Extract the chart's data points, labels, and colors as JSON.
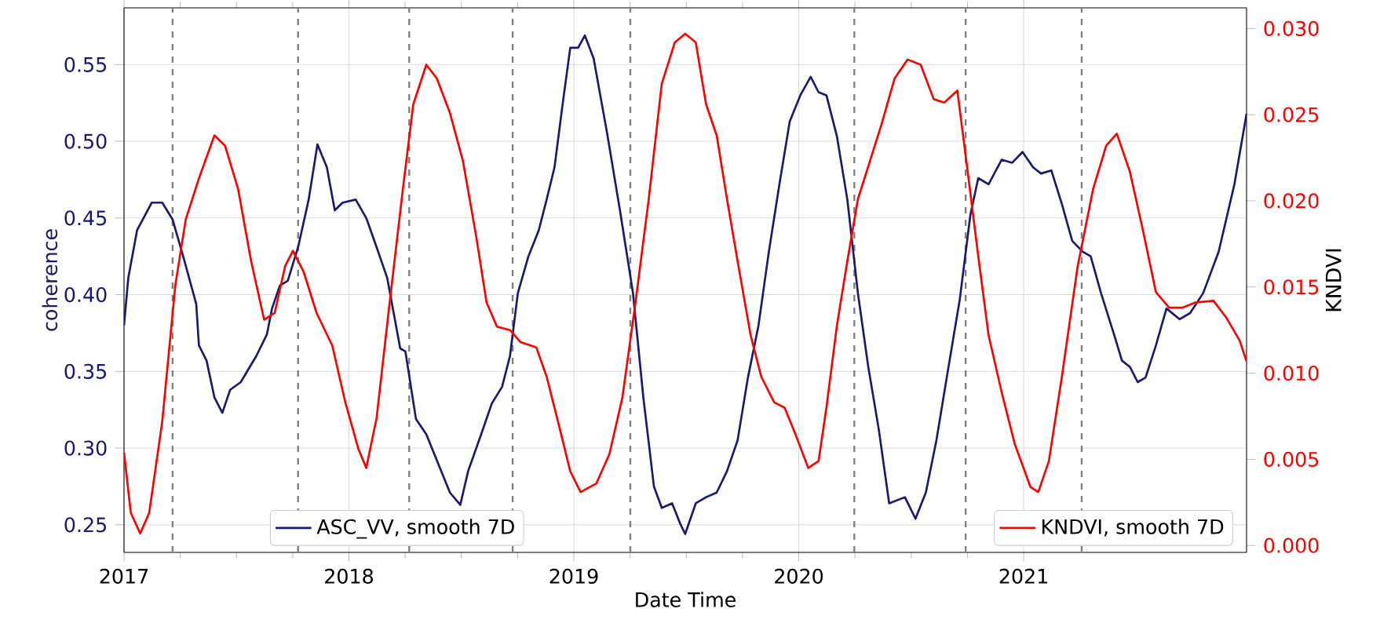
{
  "chart_data": {
    "type": "line",
    "xlabel": "Date Time",
    "ylabel": "coherence",
    "y2label": "KNDVI",
    "xlim": [
      2017,
      2021.991
    ],
    "xticks": [
      2017,
      2018,
      2019,
      2020,
      2021
    ],
    "ylim": [
      0.232,
      0.587
    ],
    "yticks": [
      {
        "value": 0.25,
        "label": "0.25"
      },
      {
        "value": 0.3,
        "label": "0.30"
      },
      {
        "value": 0.35,
        "label": "0.35"
      },
      {
        "value": 0.4,
        "label": "0.40"
      },
      {
        "value": 0.45,
        "label": "0.45"
      },
      {
        "value": 0.5,
        "label": "0.50"
      },
      {
        "value": 0.55,
        "label": "0.55"
      }
    ],
    "y2lim": [
      -0.0004,
      0.0312
    ],
    "y2ticks": [
      {
        "value": 0,
        "label": "0.000"
      },
      {
        "value": 0.005,
        "label": "0.005"
      },
      {
        "value": 0.01,
        "label": "0.010"
      },
      {
        "value": 0.015,
        "label": "0.015"
      },
      {
        "value": 0.02,
        "label": "0.020"
      },
      {
        "value": 0.025,
        "label": "0.025"
      },
      {
        "value": 0.03,
        "label": "0.030"
      }
    ],
    "grid": true,
    "legend": "bottom",
    "series": [
      {
        "name": "ASC_VV, smooth 7D",
        "color": "#191970",
        "axis": "y",
        "x": [
          2017.0,
          2017.019,
          2017.058,
          2017.123,
          2017.17,
          2017.216,
          2017.263,
          2017.321,
          2017.333,
          2017.367,
          2017.402,
          2017.437,
          2017.472,
          2017.519,
          2017.588,
          2017.635,
          2017.658,
          2017.693,
          2017.728,
          2017.774,
          2017.821,
          2017.86,
          2017.902,
          2017.937,
          2017.972,
          2018.03,
          2018.077,
          2018.123,
          2018.17,
          2018.228,
          2018.251,
          2018.298,
          2018.344,
          2018.391,
          2018.449,
          2018.495,
          2018.53,
          2018.588,
          2018.635,
          2018.681,
          2018.716,
          2018.751,
          2018.798,
          2018.844,
          2018.879,
          2018.914,
          2018.949,
          2018.984,
          2019.019,
          2019.049,
          2019.088,
          2019.147,
          2019.205,
          2019.263,
          2019.309,
          2019.356,
          2019.391,
          2019.437,
          2019.472,
          2019.495,
          2019.542,
          2019.588,
          2019.635,
          2019.681,
          2019.728,
          2019.774,
          2019.821,
          2019.867,
          2019.914,
          2019.96,
          2020.007,
          2020.053,
          2020.088,
          2020.123,
          2020.17,
          2020.216,
          2020.263,
          2020.309,
          2020.356,
          2020.402,
          2020.472,
          2020.519,
          2020.565,
          2020.612,
          2020.658,
          2020.716,
          2020.763,
          2020.798,
          2020.844,
          2020.902,
          2020.949,
          2020.995,
          2021.042,
          2021.077,
          2021.123,
          2021.17,
          2021.216,
          2021.263,
          2021.298,
          2021.344,
          2021.402,
          2021.437,
          2021.472,
          2021.507,
          2021.542,
          2021.588,
          2021.635,
          2021.693,
          2021.74,
          2021.798,
          2021.867,
          2021.937,
          2021.991
        ],
        "values": [
          0.38,
          0.411,
          0.442,
          0.46,
          0.46,
          0.449,
          0.425,
          0.394,
          0.367,
          0.357,
          0.333,
          0.323,
          0.338,
          0.343,
          0.36,
          0.374,
          0.391,
          0.406,
          0.409,
          0.431,
          0.462,
          0.498,
          0.483,
          0.455,
          0.46,
          0.462,
          0.45,
          0.431,
          0.411,
          0.365,
          0.363,
          0.319,
          0.309,
          0.292,
          0.271,
          0.263,
          0.285,
          0.309,
          0.329,
          0.34,
          0.36,
          0.401,
          0.425,
          0.442,
          0.462,
          0.483,
          0.523,
          0.561,
          0.561,
          0.569,
          0.554,
          0.506,
          0.455,
          0.401,
          0.333,
          0.275,
          0.261,
          0.264,
          0.251,
          0.244,
          0.264,
          0.268,
          0.271,
          0.285,
          0.305,
          0.346,
          0.38,
          0.428,
          0.472,
          0.513,
          0.53,
          0.542,
          0.532,
          0.53,
          0.503,
          0.462,
          0.401,
          0.353,
          0.312,
          0.264,
          0.268,
          0.254,
          0.271,
          0.305,
          0.346,
          0.397,
          0.452,
          0.476,
          0.472,
          0.488,
          0.486,
          0.493,
          0.483,
          0.479,
          0.481,
          0.459,
          0.435,
          0.428,
          0.425,
          0.401,
          0.374,
          0.357,
          0.353,
          0.343,
          0.346,
          0.367,
          0.391,
          0.384,
          0.388,
          0.401,
          0.428,
          0.472,
          0.518
        ]
      },
      {
        "name": "KNDVI, smooth 7D",
        "color": "#ff0000",
        "axis": "y2",
        "x": [
          2017.0,
          2017.03,
          2017.072,
          2017.112,
          2017.17,
          2017.228,
          2017.274,
          2017.333,
          2017.402,
          2017.449,
          2017.507,
          2017.565,
          2017.623,
          2017.67,
          2017.716,
          2017.751,
          2017.798,
          2017.856,
          2017.926,
          2017.984,
          2018.042,
          2018.077,
          2018.123,
          2018.181,
          2018.24,
          2018.286,
          2018.344,
          2018.391,
          2018.449,
          2018.507,
          2018.565,
          2018.612,
          2018.658,
          2018.716,
          2018.763,
          2018.833,
          2018.879,
          2018.937,
          2018.984,
          2019.03,
          2019.1,
          2019.158,
          2019.216,
          2019.274,
          2019.333,
          2019.391,
          2019.449,
          2019.495,
          2019.542,
          2019.588,
          2019.635,
          2019.681,
          2019.728,
          2019.786,
          2019.833,
          2019.891,
          2019.937,
          2019.984,
          2020.042,
          2020.088,
          2020.123,
          2020.17,
          2020.216,
          2020.263,
          2020.309,
          2020.367,
          2020.426,
          2020.484,
          2020.542,
          2020.6,
          2020.647,
          2020.705,
          2020.751,
          2020.798,
          2020.844,
          2020.902,
          2020.96,
          2021.03,
          2021.065,
          2021.112,
          2021.17,
          2021.24,
          2021.309,
          2021.367,
          2021.414,
          2021.472,
          2021.53,
          2021.588,
          2021.647,
          2021.705,
          2021.763,
          2021.844,
          2021.902,
          2021.96,
          2021.991
        ],
        "values": [
          0.0054,
          0.0019,
          0.0007,
          0.0019,
          0.0072,
          0.0151,
          0.0189,
          0.0213,
          0.0238,
          0.0232,
          0.0207,
          0.0165,
          0.0131,
          0.0135,
          0.0162,
          0.0171,
          0.0159,
          0.0135,
          0.0116,
          0.0083,
          0.0056,
          0.0045,
          0.0074,
          0.0141,
          0.0207,
          0.0256,
          0.0279,
          0.0271,
          0.0251,
          0.0223,
          0.018,
          0.0141,
          0.0127,
          0.0125,
          0.0118,
          0.0115,
          0.0098,
          0.0068,
          0.0043,
          0.0031,
          0.0036,
          0.0053,
          0.0086,
          0.0141,
          0.0201,
          0.0268,
          0.0292,
          0.0297,
          0.0292,
          0.0256,
          0.0238,
          0.0201,
          0.0165,
          0.0122,
          0.0098,
          0.0083,
          0.008,
          0.0065,
          0.0045,
          0.0049,
          0.008,
          0.0128,
          0.0165,
          0.0201,
          0.022,
          0.0244,
          0.0271,
          0.0282,
          0.0279,
          0.0259,
          0.0257,
          0.0264,
          0.0217,
          0.0168,
          0.0122,
          0.0089,
          0.0059,
          0.0034,
          0.0031,
          0.0049,
          0.0098,
          0.0162,
          0.0207,
          0.0232,
          0.0239,
          0.0217,
          0.0183,
          0.0147,
          0.0138,
          0.0138,
          0.0141,
          0.0142,
          0.0132,
          0.0119,
          0.0107
        ]
      }
    ],
    "ref_lines": [
      {
        "axis": "x",
        "value": 2017.216,
        "color": "#808080",
        "line_style": "dashed"
      },
      {
        "axis": "x",
        "value": 2017.774,
        "color": "#808080",
        "line_style": "dashed"
      },
      {
        "axis": "x",
        "value": 2018.268,
        "color": "#808080",
        "line_style": "dashed"
      },
      {
        "axis": "x",
        "value": 2018.728,
        "color": "#808080",
        "line_style": "dashed"
      },
      {
        "axis": "x",
        "value": 2019.251,
        "color": "#808080",
        "line_style": "dashed"
      },
      {
        "axis": "x",
        "value": 2020.247,
        "color": "#808080",
        "line_style": "dashed"
      },
      {
        "axis": "x",
        "value": 2020.742,
        "color": "#808080",
        "line_style": "dashed"
      },
      {
        "axis": "x",
        "value": 2021.258,
        "color": "#808080",
        "line_style": "dashed"
      }
    ]
  }
}
